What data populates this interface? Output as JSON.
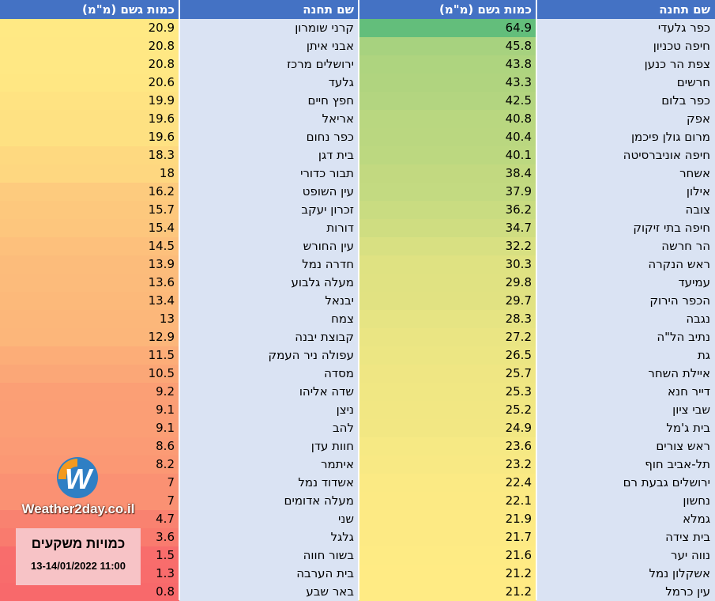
{
  "headers": {
    "right_station": "שם תחנה",
    "right_amount": "כמות גשם (מ\"מ)",
    "left_station": "שם תחנה",
    "left_amount": "כמות גשם (מ\"מ)"
  },
  "right_table": [
    {
      "station": "כפר גלעדי",
      "value": 64.9
    },
    {
      "station": "חיפה טכניון",
      "value": 45.8
    },
    {
      "station": "צפת הר כנען",
      "value": 43.8
    },
    {
      "station": "חרשים",
      "value": 43.3
    },
    {
      "station": "כפר בלום",
      "value": 42.5
    },
    {
      "station": "אפק",
      "value": 40.8
    },
    {
      "station": "מרום גולן פיכמן",
      "value": 40.4
    },
    {
      "station": "חיפה אוניברסיטה",
      "value": 40.1
    },
    {
      "station": "אשחר",
      "value": 38.4
    },
    {
      "station": "אילון",
      "value": 37.9
    },
    {
      "station": "צובה",
      "value": 36.2
    },
    {
      "station": "חיפה בתי זיקוק",
      "value": 34.7
    },
    {
      "station": "הר חרשה",
      "value": 32.2
    },
    {
      "station": "ראש הנקרה",
      "value": 30.3
    },
    {
      "station": "עמיעד",
      "value": 29.8
    },
    {
      "station": "הכפר הירוק",
      "value": 29.7
    },
    {
      "station": "נגבה",
      "value": 28.3
    },
    {
      "station": "נתיב הל\"ה",
      "value": 27.2
    },
    {
      "station": "גת",
      "value": 26.5
    },
    {
      "station": "איילת השחר",
      "value": 25.7
    },
    {
      "station": "דייר חנא",
      "value": 25.3
    },
    {
      "station": "שבי ציון",
      "value": 25.2
    },
    {
      "station": "בית ג'מל",
      "value": 24.9
    },
    {
      "station": "ראש צורים",
      "value": 23.6
    },
    {
      "station": "תל-אביב חוף",
      "value": 23.2
    },
    {
      "station": "ירושלים גבעת רם",
      "value": 22.4
    },
    {
      "station": "נחשון",
      "value": 22.1
    },
    {
      "station": "גמלא",
      "value": 21.9
    },
    {
      "station": "בית צידה",
      "value": 21.7
    },
    {
      "station": "נווה יער",
      "value": 21.6
    },
    {
      "station": "אשקלון נמל",
      "value": 21.2
    },
    {
      "station": "עין כרמל",
      "value": 21.2
    }
  ],
  "left_table": [
    {
      "station": "קרני שומרון",
      "value": 20.9
    },
    {
      "station": "אבני איתן",
      "value": 20.8
    },
    {
      "station": "ירושלים מרכז",
      "value": 20.8
    },
    {
      "station": "גלעד",
      "value": 20.6
    },
    {
      "station": "חפץ חיים",
      "value": 19.9
    },
    {
      "station": "אריאל",
      "value": 19.6
    },
    {
      "station": "כפר נחום",
      "value": 19.6
    },
    {
      "station": "בית דגן",
      "value": 18.3
    },
    {
      "station": "תבור כדורי",
      "value": 18
    },
    {
      "station": "עין השופט",
      "value": 16.2
    },
    {
      "station": "זכרון יעקב",
      "value": 15.7
    },
    {
      "station": "דורות",
      "value": 15.4
    },
    {
      "station": "עין החורש",
      "value": 14.5
    },
    {
      "station": "חדרה נמל",
      "value": 13.9
    },
    {
      "station": "מעלה גלבוע",
      "value": 13.6
    },
    {
      "station": "יבנאל",
      "value": 13.4
    },
    {
      "station": "צמח",
      "value": 13
    },
    {
      "station": "קבוצת יבנה",
      "value": 12.9
    },
    {
      "station": "עפולה ניר העמק",
      "value": 11.5
    },
    {
      "station": "מסדה",
      "value": 10.5
    },
    {
      "station": "שדה אליהו",
      "value": 9.2
    },
    {
      "station": "ניצן",
      "value": 9.1
    },
    {
      "station": "להב",
      "value": 9.1
    },
    {
      "station": "חוות עדן",
      "value": 8.6
    },
    {
      "station": "איתמר",
      "value": 8.2
    },
    {
      "station": "אשדוד נמל",
      "value": 7
    },
    {
      "station": "מעלה אדומים",
      "value": 7
    },
    {
      "station": "שני",
      "value": 4.7
    },
    {
      "station": "גלגל",
      "value": 3.6
    },
    {
      "station": "בשור חווה",
      "value": 1.5
    },
    {
      "station": "בית הערבה",
      "value": 1.3
    },
    {
      "station": "באר שבע",
      "value": 0.8
    }
  ],
  "logo": {
    "text": "Weather2day.co.il",
    "icon": "weather2day-w-logo-icon"
  },
  "caption": {
    "title": "כמויות משקעים",
    "date": "13-14/01/2022 11:00"
  },
  "colors": {
    "header_bg": "#4472c4",
    "header_text": "#ffffff",
    "name_cell_bg": "#dae3f3",
    "scale_high": "#63be7b",
    "scale_mid": "#ffeb84",
    "scale_low": "#f8696b",
    "caption_bg": "#f7c3c6"
  }
}
